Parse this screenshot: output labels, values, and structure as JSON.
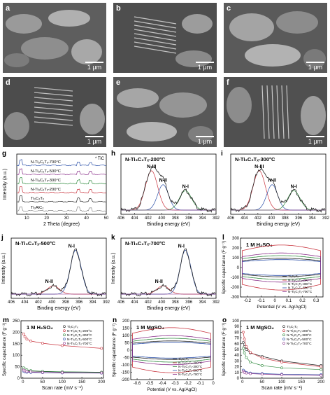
{
  "sem_panels": [
    {
      "label": "a",
      "scale": "1 μm"
    },
    {
      "label": "b",
      "scale": "1 μm"
    },
    {
      "label": "c",
      "scale": "1 μm"
    },
    {
      "label": "d",
      "scale": "1 μm"
    },
    {
      "label": "e",
      "scale": "1 μm"
    },
    {
      "label": "f",
      "scale": "1 μm"
    }
  ],
  "colors": {
    "black": "#222222",
    "red": "#c8323c",
    "blue": "#2a4fa8",
    "green": "#2f8a3e",
    "purple": "#8a2f8a",
    "gray": "#888888"
  },
  "chart_data": [
    {
      "panel": "g",
      "type": "line",
      "xlabel": "2 Theta (degree)",
      "ylabel": "Intensity (a.u.)",
      "xlim": [
        5,
        50
      ],
      "xticks": [
        10,
        20,
        30,
        40,
        50
      ],
      "legend_marker": "* TiC",
      "series": [
        {
          "name": "N-Ti₃C₂Tₓ-700°C",
          "color": "#2a4fa8"
        },
        {
          "name": "N-Ti₃C₂Tₓ-500°C",
          "color": "#8a2f8a"
        },
        {
          "name": "N-Ti₃C₂Tₓ-300°C",
          "color": "#2f8a3e"
        },
        {
          "name": "N-Ti₃C₂Tₓ-200°C",
          "color": "#c8323c"
        },
        {
          "name": "Ti₃C₂Tₓ",
          "color": "#222222"
        },
        {
          "name": "Ti₃AlC₂",
          "color": "#888888"
        }
      ]
    },
    {
      "panel": "h",
      "type": "line",
      "title": "N-Ti₃C₂Tₓ-200°C",
      "xlabel": "Binding energy (eV)",
      "xticks": [
        406,
        404,
        402,
        400,
        398,
        396,
        394,
        392
      ],
      "peaks": [
        {
          "label": "N-III",
          "x": 401.5
        },
        {
          "label": "N-II",
          "x": 399.8
        },
        {
          "label": "N-I",
          "x": 396.5
        }
      ]
    },
    {
      "panel": "i",
      "type": "line",
      "title": "N-Ti₃C₂Tₓ-300°C",
      "xlabel": "Binding energy (eV)",
      "xticks": [
        406,
        404,
        402,
        400,
        398,
        396,
        394,
        392
      ],
      "peaks": [
        {
          "label": "N-III",
          "x": 401.8
        },
        {
          "label": "N-II",
          "x": 399.9
        },
        {
          "label": "N-I",
          "x": 396.7
        }
      ]
    },
    {
      "panel": "j",
      "type": "line",
      "title": "N-Ti₃C₂Tₓ-500°C",
      "xlabel": "Binding energy (eV)",
      "ylabel": "Intensity (a.u.)",
      "xticks": [
        406,
        404,
        402,
        400,
        398,
        396,
        394,
        392
      ],
      "peaks": [
        {
          "label": "N-II",
          "x": 399.8
        },
        {
          "label": "N-I",
          "x": 396.5
        }
      ]
    },
    {
      "panel": "k",
      "type": "line",
      "title": "N-Ti₃C₂Tₓ-700°C",
      "xlabel": "Binding energy (eV)",
      "ylabel": "Intensity (a.u.)",
      "xticks": [
        406,
        404,
        402,
        400,
        398,
        396,
        394,
        392
      ],
      "peaks": [
        {
          "label": "N-II",
          "x": 399.8
        },
        {
          "label": "N-I",
          "x": 396.5
        }
      ]
    },
    {
      "panel": "l",
      "type": "line",
      "annotation": "1 M H₂SO₄",
      "xlabel": "Potential (V vs. Ag/AgCl)",
      "ylabel": "Specific capacitance (F g⁻¹)",
      "xlim": [
        -0.25,
        0.35
      ],
      "ylim": [
        -300,
        300
      ],
      "xticks": [
        -0.2,
        -0.1,
        0.0,
        0.1,
        0.2,
        0.3
      ],
      "yticks": [
        -300,
        -200,
        -100,
        0,
        100,
        200,
        300
      ],
      "legend": [
        "Ti₃C₂Tₓ",
        "N-Ti₃C₂Tₓ-200°C",
        "N-Ti₃C₂Tₓ-300°C",
        "N-Ti₃C₂Tₓ-500°C",
        "N-Ti₃C₂Tₓ-700°C"
      ]
    },
    {
      "panel": "m",
      "type": "line",
      "annotation": "1 M H₂SO₄",
      "xlabel": "Scan rate (mV s⁻¹)",
      "ylabel": "Specific capacitance (F g⁻¹)",
      "xlim": [
        -5,
        205
      ],
      "ylim": [
        0,
        250
      ],
      "xticks": [
        0,
        50,
        100,
        150,
        200
      ],
      "yticks": [
        0,
        50,
        100,
        150,
        200,
        250
      ],
      "x": [
        2,
        5,
        10,
        20,
        50,
        100,
        200
      ],
      "series": [
        {
          "name": "Ti₃C₂Tₓ",
          "color": "#222222",
          "values": [
            40,
            36,
            33,
            31,
            29,
            27,
            26
          ]
        },
        {
          "name": "N-Ti₃C₂Tₓ-200°C",
          "color": "#c8323c",
          "values": [
            192,
            180,
            170,
            162,
            152,
            142,
            130
          ]
        },
        {
          "name": "N-Ti₃C₂Tₓ-300°C",
          "color": "#2f8a3e",
          "values": [
            45,
            40,
            36,
            33,
            30,
            28,
            26
          ]
        },
        {
          "name": "N-Ti₃C₂Tₓ-500°C",
          "color": "#2a4fa8",
          "values": [
            30,
            28,
            26,
            25,
            24,
            23,
            22
          ]
        },
        {
          "name": "N-Ti₃C₂Tₓ-700°C",
          "color": "#8a2f8a",
          "values": [
            35,
            32,
            29,
            27,
            25,
            24,
            23
          ]
        }
      ],
      "legend": [
        "Ti₃C₂Tₓ",
        "N-Ti₃C₂Tₓ-200°C",
        "N-Ti₃C₂Tₓ-300°C",
        "N-Ti₃C₂Tₓ-500°C",
        "N-Ti₃C₂Tₓ-700°C"
      ]
    },
    {
      "panel": "n",
      "type": "line",
      "annotation": "1 M MgSO₄",
      "xlabel": "Potential (V vs. Ag/AgCl)",
      "ylabel": "Specific capacitance (F g⁻¹)",
      "xlim": [
        -0.65,
        0.0
      ],
      "ylim": [
        -200,
        200
      ],
      "xticks": [
        -0.6,
        -0.5,
        -0.4,
        -0.3,
        -0.2,
        -0.1,
        0.0
      ],
      "yticks": [
        -200,
        -150,
        -100,
        -50,
        0,
        50,
        100,
        150,
        200
      ],
      "legend": [
        "Ti₃C₂Tₓ",
        "N-Ti₃C₂Tₓ-200°C",
        "N-Ti₃C₂Tₓ-300°C",
        "N-Ti₃C₂Tₓ-500°C",
        "N-Ti₃C₂Tₓ-700°C"
      ]
    },
    {
      "panel": "o",
      "type": "line",
      "annotation": "1 M MgSO₄",
      "xlabel": "Scan rate (mV s⁻¹)",
      "ylabel": "Specific capacitance (F g⁻¹)",
      "xlim": [
        -5,
        205
      ],
      "ylim": [
        0,
        100
      ],
      "xticks": [
        0,
        50,
        100,
        150,
        200
      ],
      "yticks": [
        0,
        10,
        20,
        30,
        40,
        50,
        60,
        70,
        80,
        90,
        100
      ],
      "x": [
        2,
        5,
        10,
        20,
        50,
        100,
        200
      ],
      "series": [
        {
          "name": "Ti₃C₂Tₓ",
          "color": "#222222",
          "values": [
            62,
            55,
            50,
            44,
            38,
            30,
            22
          ]
        },
        {
          "name": "N-Ti₃C₂Tₓ-200°C",
          "color": "#c8323c",
          "values": [
            80,
            68,
            55,
            45,
            35,
            28,
            20
          ]
        },
        {
          "name": "N-Ti₃C₂Tₓ-300°C",
          "color": "#2f8a3e",
          "values": [
            52,
            44,
            36,
            28,
            22,
            18,
            15
          ]
        },
        {
          "name": "N-Ti₃C₂Tₓ-500°C",
          "color": "#2a4fa8",
          "values": [
            14,
            12,
            10,
            9,
            8,
            7,
            6
          ]
        },
        {
          "name": "N-Ti₃C₂Tₓ-700°C",
          "color": "#8a2f8a",
          "values": [
            12,
            10,
            9,
            8,
            7,
            6,
            5
          ]
        }
      ],
      "legend": [
        "Ti₃C₂Tₓ",
        "N-Ti₃C₂Tₓ-200°C",
        "N-Ti₃C₂Tₓ-300°C",
        "N-Ti₃C₂Tₓ-500°C",
        "N-Ti₃C₂Tₓ-700°C"
      ]
    }
  ]
}
